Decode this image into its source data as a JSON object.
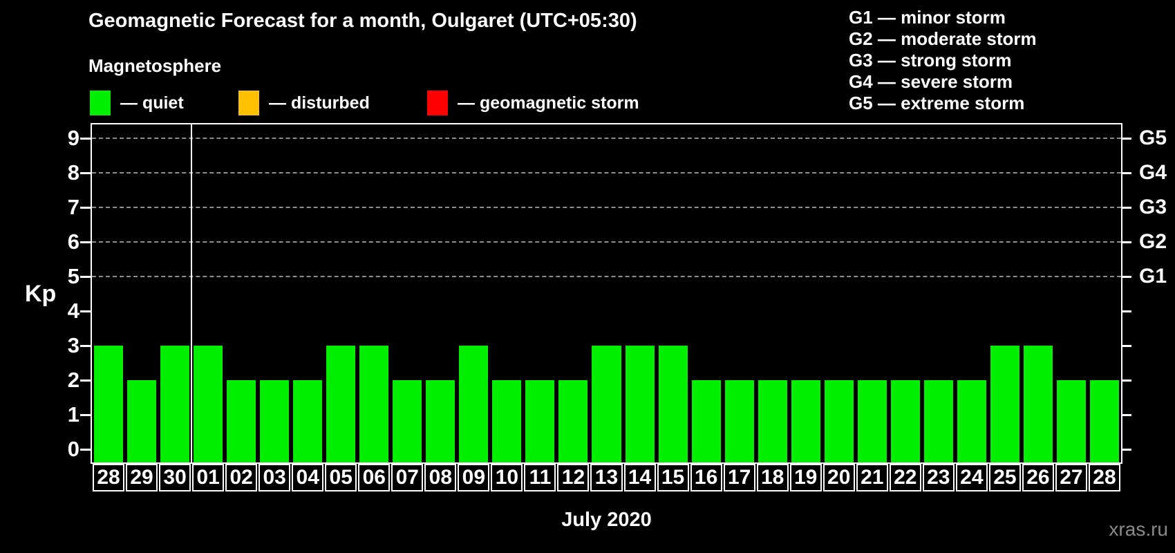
{
  "title": "Geomagnetic Forecast for a month, Oulgaret (UTC+05:30)",
  "subtitle": "Magnetosphere",
  "legend": {
    "items": [
      {
        "key": "quiet",
        "label": "— quiet",
        "color": "#00ee00"
      },
      {
        "key": "disturbed",
        "label": "— disturbed",
        "color": "#ffc000"
      },
      {
        "key": "storm",
        "label": "— geomagnetic storm",
        "color": "#ff0000"
      }
    ]
  },
  "g_legend": [
    "G1 — minor storm",
    "G2 — moderate storm",
    "G3 — strong storm",
    "G4 — severe storm",
    "G5 — extreme storm"
  ],
  "watermark": "xras.ru",
  "chart_data": {
    "type": "bar",
    "title": "Geomagnetic Forecast for a month, Oulgaret (UTC+05:30)",
    "xlabel": "July 2020",
    "ylabel": "Kp",
    "ylim": [
      0,
      9
    ],
    "y_ticks": [
      0,
      1,
      2,
      3,
      4,
      5,
      6,
      7,
      8,
      9
    ],
    "gridlines_at": [
      5,
      6,
      7,
      8,
      9
    ],
    "right_axis_labels": [
      {
        "kp": 5,
        "label": "G1"
      },
      {
        "kp": 6,
        "label": "G2"
      },
      {
        "kp": 7,
        "label": "G3"
      },
      {
        "kp": 8,
        "label": "G4"
      },
      {
        "kp": 9,
        "label": "G5"
      }
    ],
    "categories": [
      "28",
      "29",
      "30",
      "01",
      "02",
      "03",
      "04",
      "05",
      "06",
      "07",
      "08",
      "09",
      "10",
      "11",
      "12",
      "13",
      "14",
      "15",
      "16",
      "17",
      "18",
      "19",
      "20",
      "21",
      "22",
      "23",
      "24",
      "25",
      "26",
      "27",
      "28"
    ],
    "values": [
      3,
      2,
      3,
      3,
      2,
      2,
      2,
      3,
      3,
      2,
      2,
      3,
      2,
      2,
      2,
      3,
      3,
      3,
      2,
      2,
      2,
      2,
      2,
      2,
      2,
      2,
      2,
      3,
      3,
      2,
      2
    ],
    "bar_color": "#00ee00",
    "month_separator_after_index": 2,
    "legend_position": "top",
    "grid": "dashed-on-g-levels"
  }
}
